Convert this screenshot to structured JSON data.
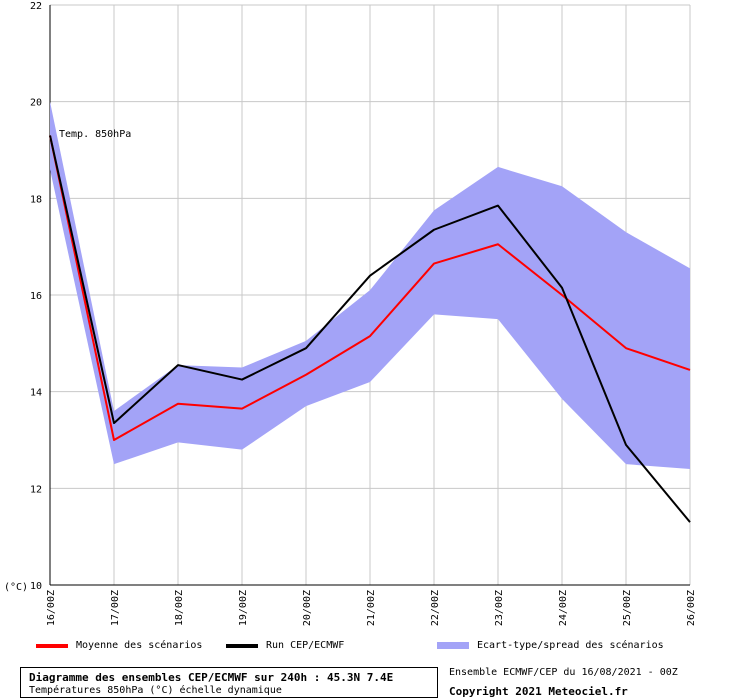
{
  "chart_data": {
    "type": "line",
    "title": "Diagramme des ensembles CEP/ECMWF sur 240h : 45.3N 7.4E",
    "subtitle": "Températures 850hPa (°C) échelle dynamique",
    "series_label": "Temp. 850hPa",
    "ylabel": "(°C)",
    "xlabel": "",
    "ylim": [
      10,
      22
    ],
    "yticks": [
      10,
      12,
      14,
      16,
      18,
      20,
      22
    ],
    "grid": true,
    "x": [
      "16/00Z",
      "17/00Z",
      "18/00Z",
      "19/00Z",
      "20/00Z",
      "21/00Z",
      "22/00Z",
      "23/00Z",
      "24/00Z",
      "25/00Z",
      "26/00Z"
    ],
    "series": [
      {
        "name": "Moyenne des scénarios",
        "color": "#ff0000",
        "values": [
          19.3,
          13.0,
          13.75,
          13.65,
          14.35,
          15.15,
          16.65,
          17.05,
          16.0,
          14.9,
          14.45
        ]
      },
      {
        "name": "Run CEP/ECMWF",
        "color": "#000000",
        "values": [
          19.3,
          13.35,
          14.55,
          14.25,
          14.9,
          16.4,
          17.35,
          17.85,
          16.15,
          12.9,
          11.3
        ]
      }
    ],
    "band": {
      "name": "Ecart-type/spread des scénarios",
      "color": "#a3a3f7",
      "upper": [
        20.0,
        13.6,
        14.55,
        14.5,
        15.05,
        16.1,
        17.75,
        18.65,
        18.25,
        17.3,
        16.55
      ],
      "lower": [
        18.6,
        12.5,
        12.95,
        12.8,
        13.7,
        14.2,
        15.6,
        15.5,
        13.85,
        12.5,
        12.4
      ]
    }
  },
  "footer": {
    "source": "Ensemble ECMWF/CEP du 16/08/2021 - 00Z",
    "copyright": "Copyright 2021 Meteociel.fr"
  }
}
